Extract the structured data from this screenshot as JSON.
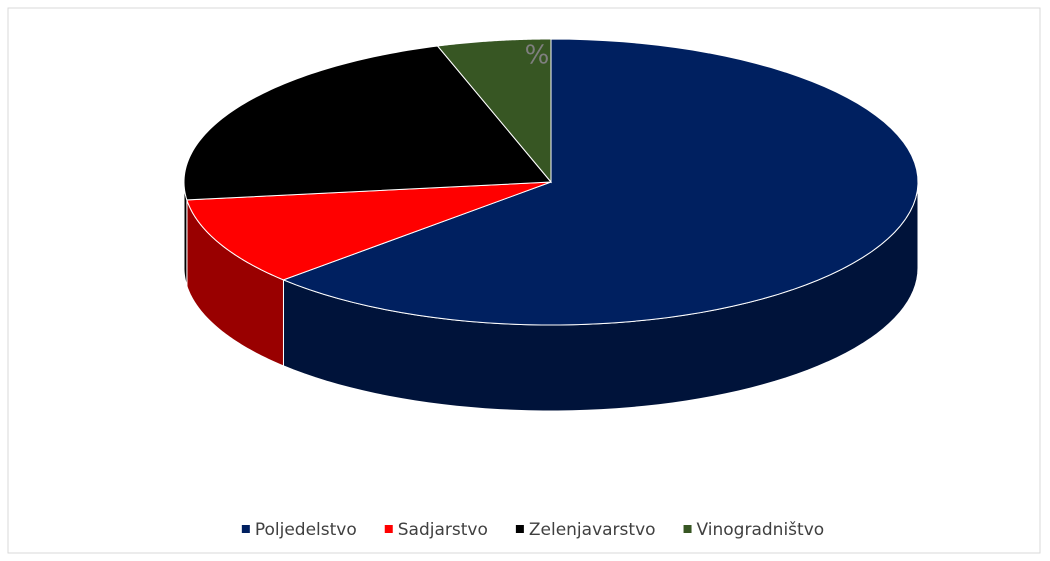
{
  "chart_data": {
    "type": "pie3d",
    "categories": [
      "Poljedelstvo",
      "Sadjarstvo",
      "Zelenjavarstvo",
      "Vinogradništvo"
    ],
    "values": [
      63,
      10,
      22,
      5
    ],
    "colors": [
      "#002060",
      "#ff0000",
      "#000000",
      "#375623"
    ],
    "annotation": "%",
    "legend": "bottom"
  }
}
